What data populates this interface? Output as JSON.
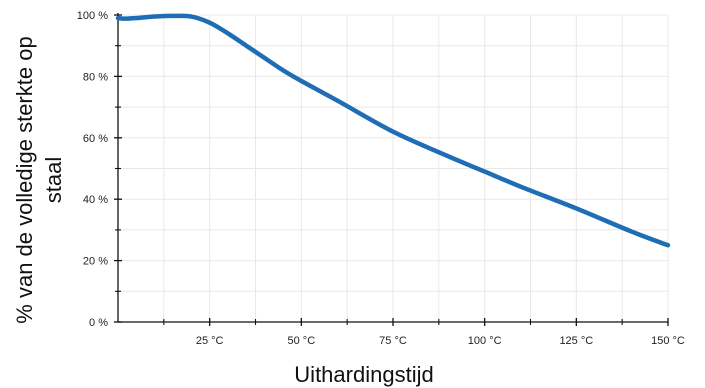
{
  "colors": {
    "series": "#1f6db5",
    "grid": "#e8e8e8",
    "axis": "#111111"
  },
  "chart_data": {
    "type": "line",
    "title": "",
    "xlabel": "Uithardingstijd",
    "ylabel_lines": [
      "% van de volledige sterkte op",
      "staal"
    ],
    "xlim": [
      0,
      150
    ],
    "ylim": [
      0,
      100
    ],
    "grid": true,
    "x_ticks": [
      {
        "value": 25,
        "label": "25 °C"
      },
      {
        "value": 50,
        "label": "50 °C"
      },
      {
        "value": 75,
        "label": "75 °C"
      },
      {
        "value": 100,
        "label": "100 °C"
      },
      {
        "value": 125,
        "label": "125 °C"
      },
      {
        "value": 150,
        "label": "150 °C"
      }
    ],
    "x_minor_ticks": [
      12.5,
      37.5,
      62.5,
      87.5,
      112.5,
      137.5
    ],
    "y_ticks": [
      {
        "value": 0,
        "label": "0 %"
      },
      {
        "value": 20,
        "label": "20 %"
      },
      {
        "value": 40,
        "label": "40 %"
      },
      {
        "value": 60,
        "label": "60 %"
      },
      {
        "value": 80,
        "label": "80 %"
      },
      {
        "value": 100,
        "label": "100 %"
      }
    ],
    "y_minor_ticks": [
      10,
      30,
      50,
      70,
      90
    ],
    "series": [
      {
        "x": [
          0,
          2,
          5,
          10,
          15,
          20,
          25,
          30,
          35,
          40,
          45,
          50,
          60,
          75,
          90,
          100,
          110,
          125,
          140,
          150
        ],
        "y": [
          99,
          98.8,
          99,
          99.5,
          99.7,
          99.5,
          97.5,
          94,
          90,
          86,
          82,
          78.5,
          72,
          62,
          54,
          49,
          44,
          37,
          29.5,
          25
        ]
      }
    ]
  }
}
